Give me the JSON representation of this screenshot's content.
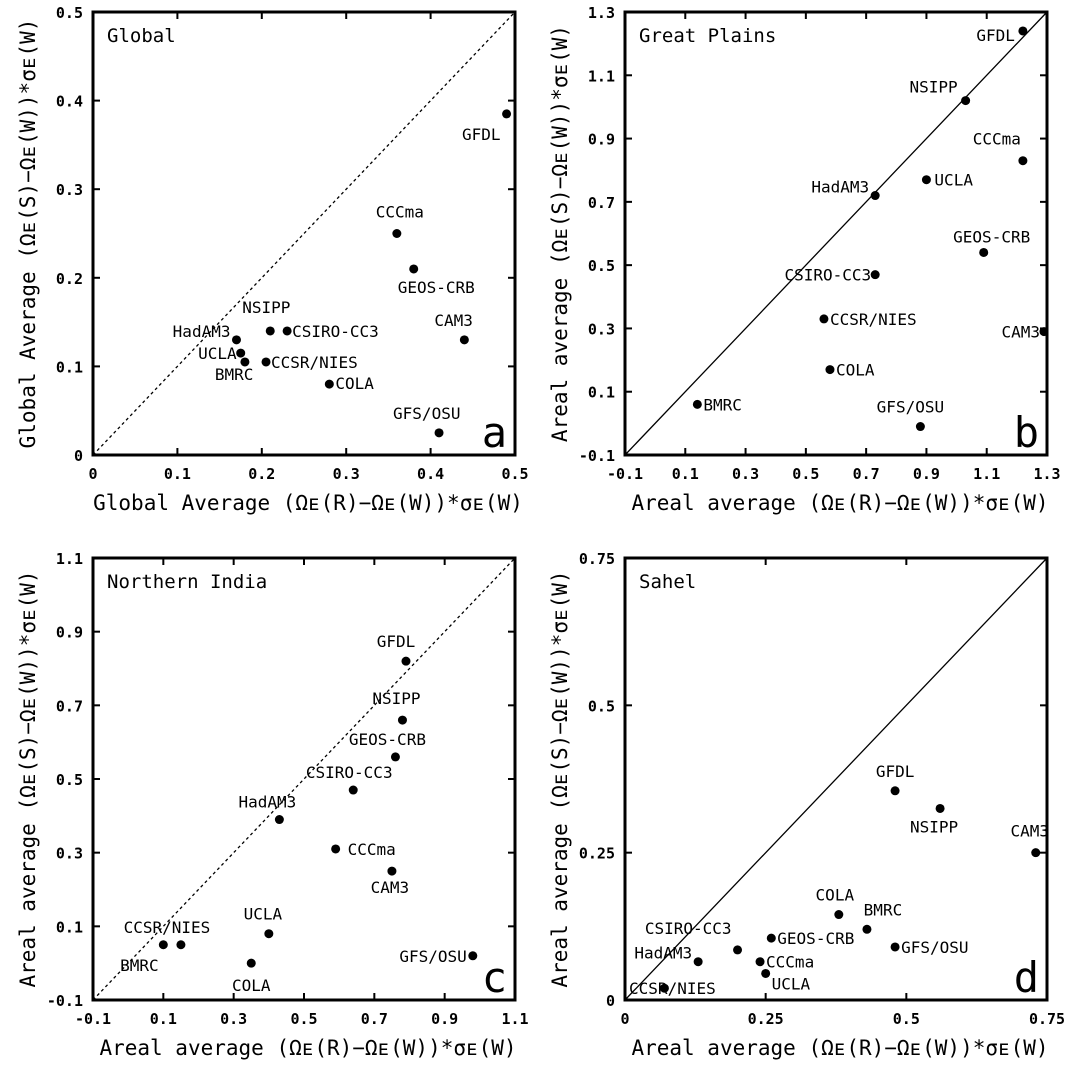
{
  "chart_data": [
    {
      "type": "scatter",
      "title": "Global",
      "panel_letter": "a",
      "xlabel": "Global Average (Ωᴇ(R)−Ωᴇ(W))*σᴇ(W)",
      "ylabel": "Global Average (Ωᴇ(S)−Ωᴇ(W))*σᴇ(W)",
      "xlim": [
        0,
        0.5
      ],
      "ylim": [
        0,
        0.5
      ],
      "xticks": [
        "0",
        "0.1",
        "0.2",
        "0.3",
        "0.4",
        "0.5"
      ],
      "yticks": [
        "0",
        "0.1",
        "0.2",
        "0.3",
        "0.4",
        "0.5"
      ],
      "one_to_one_line": "dashed",
      "grid": false,
      "points": [
        {
          "label": "GFDL",
          "x": 0.49,
          "y": 0.385
        },
        {
          "label": "CCCma",
          "x": 0.36,
          "y": 0.25
        },
        {
          "label": "GEOS-CRB",
          "x": 0.38,
          "y": 0.21
        },
        {
          "label": "CAM3",
          "x": 0.44,
          "y": 0.13
        },
        {
          "label": "NSIPP",
          "x": 0.21,
          "y": 0.14
        },
        {
          "label": "CSIRO-CC3",
          "x": 0.23,
          "y": 0.14
        },
        {
          "label": "HadAM3",
          "x": 0.17,
          "y": 0.13
        },
        {
          "label": "UCLA",
          "x": 0.175,
          "y": 0.115
        },
        {
          "label": "BMRC",
          "x": 0.18,
          "y": 0.105
        },
        {
          "label": "CCSR/NIES",
          "x": 0.205,
          "y": 0.105
        },
        {
          "label": "COLA",
          "x": 0.28,
          "y": 0.08
        },
        {
          "label": "GFS/OSU",
          "x": 0.41,
          "y": 0.025
        }
      ]
    },
    {
      "type": "scatter",
      "title": "Great Plains",
      "panel_letter": "b",
      "xlabel": "Areal average (Ωᴇ(R)−Ωᴇ(W))*σᴇ(W)",
      "ylabel": "Areal average (Ωᴇ(S)−Ωᴇ(W))*σᴇ(W)",
      "xlim": [
        -0.1,
        1.3
      ],
      "ylim": [
        -0.1,
        1.3
      ],
      "xticks": [
        "-0.1",
        "0.1",
        "0.3",
        "0.5",
        "0.7",
        "0.9",
        "1.1",
        "1.3"
      ],
      "yticks": [
        "-0.1",
        "0.1",
        "0.3",
        "0.5",
        "0.7",
        "0.9",
        "1.1",
        "1.3"
      ],
      "one_to_one_line": "solid",
      "grid": false,
      "points": [
        {
          "label": "GFDL",
          "x": 1.22,
          "y": 1.24
        },
        {
          "label": "NSIPP",
          "x": 1.03,
          "y": 1.02
        },
        {
          "label": "CCCma",
          "x": 1.22,
          "y": 0.83
        },
        {
          "label": "UCLA",
          "x": 0.9,
          "y": 0.77
        },
        {
          "label": "HadAM3",
          "x": 0.73,
          "y": 0.72
        },
        {
          "label": "GEOS-CRB",
          "x": 1.09,
          "y": 0.54
        },
        {
          "label": "CSIRO-CC3",
          "x": 0.73,
          "y": 0.47
        },
        {
          "label": "CCSR/NIES",
          "x": 0.56,
          "y": 0.33
        },
        {
          "label": "CAM3",
          "x": 1.29,
          "y": 0.29
        },
        {
          "label": "COLA",
          "x": 0.58,
          "y": 0.17
        },
        {
          "label": "BMRC",
          "x": 0.14,
          "y": 0.06
        },
        {
          "label": "GFS/OSU",
          "x": 0.88,
          "y": -0.01
        }
      ]
    },
    {
      "type": "scatter",
      "title": "Northern India",
      "panel_letter": "c",
      "xlabel": "Areal average (Ωᴇ(R)−Ωᴇ(W))*σᴇ(W)",
      "ylabel": "Areal average (Ωᴇ(S)−Ωᴇ(W))*σᴇ(W)",
      "xlim": [
        -0.1,
        1.1
      ],
      "ylim": [
        -0.1,
        1.1
      ],
      "xticks": [
        "-0.1",
        "0.1",
        "0.3",
        "0.5",
        "0.7",
        "0.9",
        "1.1"
      ],
      "yticks": [
        "-0.1",
        "0.1",
        "0.3",
        "0.5",
        "0.7",
        "0.9",
        "1.1"
      ],
      "one_to_one_line": "dashed",
      "grid": false,
      "points": [
        {
          "label": "GFDL",
          "x": 0.79,
          "y": 0.82
        },
        {
          "label": "NSIPP",
          "x": 0.78,
          "y": 0.66
        },
        {
          "label": "GEOS-CRB",
          "x": 0.76,
          "y": 0.56
        },
        {
          "label": "CSIRO-CC3",
          "x": 0.64,
          "y": 0.47
        },
        {
          "label": "HadAM3",
          "x": 0.43,
          "y": 0.39
        },
        {
          "label": "CCCma",
          "x": 0.59,
          "y": 0.31
        },
        {
          "label": "CAM3",
          "x": 0.75,
          "y": 0.25
        },
        {
          "label": "UCLA",
          "x": 0.4,
          "y": 0.08
        },
        {
          "label": "CCSR/NIES",
          "x": 0.15,
          "y": 0.05
        },
        {
          "label": "BMRC",
          "x": 0.1,
          "y": 0.05
        },
        {
          "label": "COLA",
          "x": 0.35,
          "y": 0.0
        },
        {
          "label": "GFS/OSU",
          "x": 0.98,
          "y": 0.02
        }
      ]
    },
    {
      "type": "scatter",
      "title": "Sahel",
      "panel_letter": "d",
      "xlabel": "Areal average (Ωᴇ(R)−Ωᴇ(W))*σᴇ(W)",
      "ylabel": "Areal average (Ωᴇ(S)−Ωᴇ(W))*σᴇ(W)",
      "xlim": [
        0,
        0.75
      ],
      "ylim": [
        0,
        0.75
      ],
      "xticks": [
        "0",
        "0.25",
        "0.5",
        "0.75"
      ],
      "yticks": [
        "0",
        "0.25",
        "0.5",
        "0.75"
      ],
      "one_to_one_line": "solid",
      "grid": false,
      "points": [
        {
          "label": "GFDL",
          "x": 0.48,
          "y": 0.355
        },
        {
          "label": "NSIPP",
          "x": 0.56,
          "y": 0.325
        },
        {
          "label": "CAM3",
          "x": 0.73,
          "y": 0.25
        },
        {
          "label": "COLA",
          "x": 0.38,
          "y": 0.145
        },
        {
          "label": "BMRC",
          "x": 0.43,
          "y": 0.12
        },
        {
          "label": "CSIRO-CC3",
          "x": 0.2,
          "y": 0.085
        },
        {
          "label": "GEOS-CRB",
          "x": 0.26,
          "y": 0.105
        },
        {
          "label": "GFS/OSU",
          "x": 0.48,
          "y": 0.09
        },
        {
          "label": "HadAM3",
          "x": 0.13,
          "y": 0.065
        },
        {
          "label": "CCCma",
          "x": 0.24,
          "y": 0.065
        },
        {
          "label": "UCLA",
          "x": 0.25,
          "y": 0.045
        },
        {
          "label": "CCSR/NIES",
          "x": 0.07,
          "y": 0.02
        }
      ]
    }
  ]
}
